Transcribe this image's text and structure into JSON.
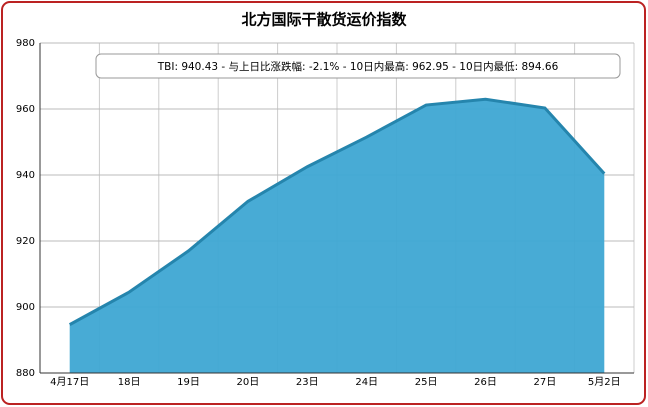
{
  "chart_data": {
    "type": "area",
    "title": "北方国际干散货运价指数",
    "annotation": "TBI:  940.43  - 与上日比涨跌幅:  -2.1%  - 10日内最高:  962.95  - 10日内最低:  894.66",
    "categories": [
      "4月17日",
      "18日",
      "19日",
      "20日",
      "23日",
      "24日",
      "25日",
      "26日",
      "27日",
      "5月2日"
    ],
    "series": [
      {
        "name": "TBI",
        "color": "#3ea6d3",
        "values": [
          894.66,
          904.5,
          917,
          932,
          942.5,
          951.5,
          961.2,
          962.95,
          960.3,
          940.43
        ]
      }
    ],
    "ylim": [
      880,
      980
    ],
    "yticks": [
      880,
      900,
      920,
      940,
      960,
      980
    ],
    "grid": true
  }
}
